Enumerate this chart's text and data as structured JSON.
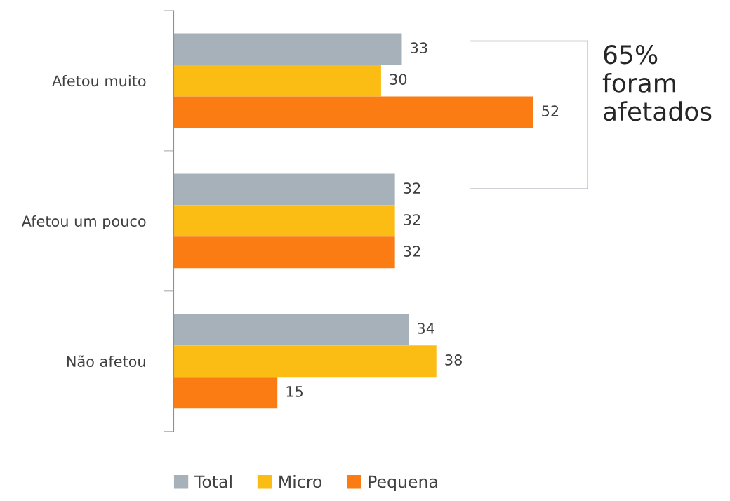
{
  "chart_data": {
    "type": "bar",
    "orientation": "horizontal",
    "categories": [
      "Afetou muito",
      "Afetou um pouco",
      "Não afetou"
    ],
    "series": [
      {
        "name": "Total",
        "color": "#a6b1b9",
        "values": [
          33,
          32,
          34
        ]
      },
      {
        "name": "Micro",
        "color": "#fbbc13",
        "values": [
          30,
          32,
          38
        ]
      },
      {
        "name": "Pequena",
        "color": "#fa7c13",
        "values": [
          52,
          32,
          15
        ]
      }
    ],
    "data_labels": true,
    "legend": "bottom",
    "annotations": [
      "65%\nforam\nafetados"
    ]
  }
}
